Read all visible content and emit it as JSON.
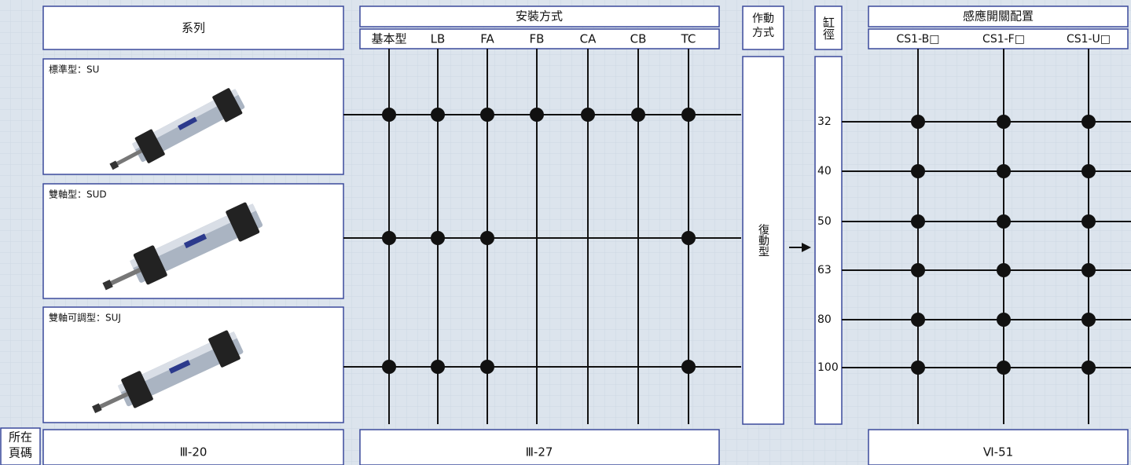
{
  "series_header": "系列",
  "series": [
    {
      "label": "標準型：SU",
      "mounts": [
        true,
        true,
        true,
        true,
        true,
        true,
        true
      ]
    },
    {
      "label": "雙軸型：SUD",
      "mounts": [
        true,
        true,
        true,
        false,
        false,
        false,
        true
      ]
    },
    {
      "label": "雙軸可調型：SUJ",
      "mounts": [
        true,
        true,
        true,
        false,
        false,
        false,
        true
      ]
    }
  ],
  "mount_header": "安裝方式",
  "mount_types": [
    "基本型",
    "LB",
    "FA",
    "FB",
    "CA",
    "CB",
    "TC"
  ],
  "action_header": {
    "lines": [
      "作動",
      "方式"
    ]
  },
  "action_type": "復動型",
  "bore_header": "缸徑",
  "bores": [
    "32",
    "40",
    "50",
    "63",
    "80",
    "100"
  ],
  "switch_header": "感應開關配置",
  "switches": [
    "CS1-B□",
    "CS1-F□",
    "CS1-U□"
  ],
  "switch_fit": [
    [
      true,
      true,
      true
    ],
    [
      true,
      true,
      true
    ],
    [
      true,
      true,
      true
    ],
    [
      true,
      true,
      true
    ],
    [
      true,
      true,
      true
    ],
    [
      true,
      true,
      true
    ]
  ],
  "page_header": {
    "lines": [
      "所在",
      "頁碼"
    ]
  },
  "pages": [
    "Ⅲ-20",
    "Ⅲ-27",
    "Ⅵ-51"
  ]
}
